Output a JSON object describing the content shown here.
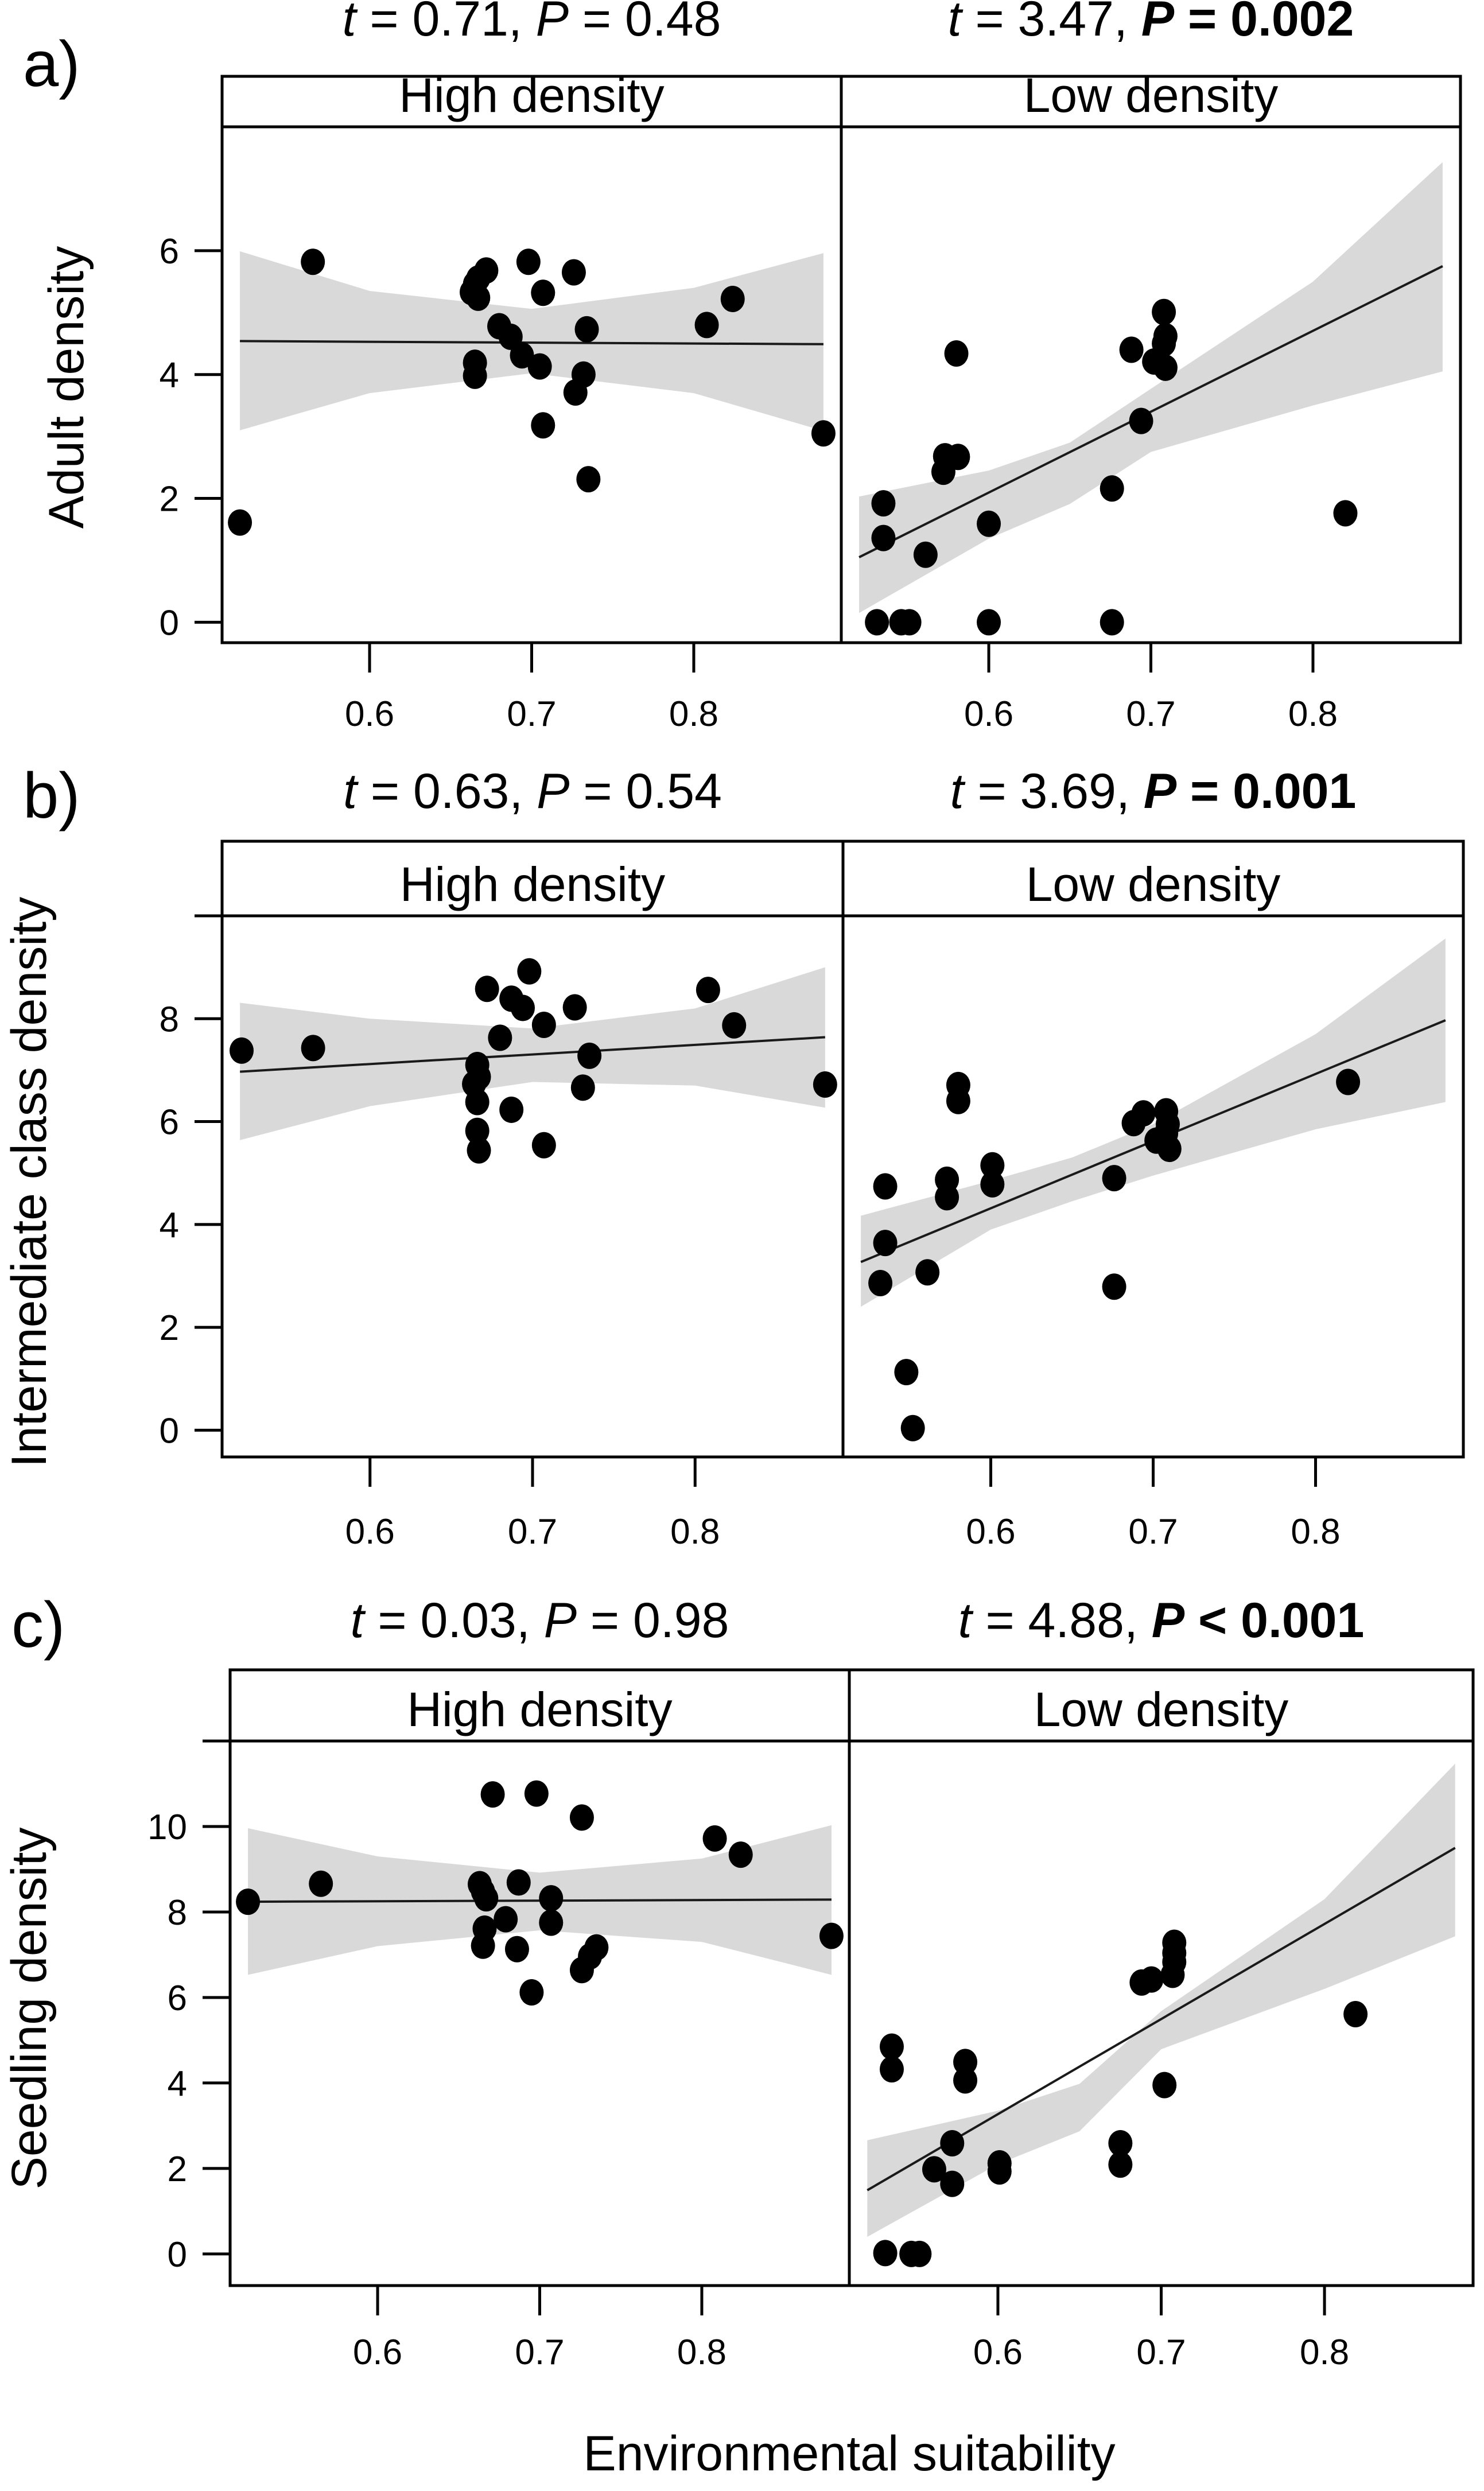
{
  "figure": {
    "xlabel": "Environmental suitability",
    "strip_labels": [
      "High density",
      "Low density"
    ]
  },
  "chart_data": [
    {
      "type": "scatter",
      "panel": "a)",
      "ylabel": "Adult density",
      "xlabel": "Environmental suitability",
      "xlim": [
        0.509,
        0.891
      ],
      "ylim": [
        -0.33,
        8.0
      ],
      "xticks": [
        0.6,
        0.7,
        0.8
      ],
      "xtick_labels": [
        "0.6",
        "0.7",
        "0.8"
      ],
      "yticks": [
        0,
        2,
        4,
        6
      ],
      "ytick_labels": [
        "0",
        "2",
        "4",
        "6"
      ],
      "facets": [
        {
          "strip": "High density",
          "stat": {
            "t_label": "t",
            "t_text": " = 0.71, ",
            "p_label": "P",
            "p_text": " = 0.48",
            "significant": false
          },
          "fit": {
            "x": [
              0.52,
              0.88
            ],
            "y": [
              4.54,
              4.49
            ]
          },
          "ci_band": {
            "x": [
              0.52,
              0.6,
              0.7,
              0.8,
              0.88
            ],
            "upper": [
              5.99,
              5.35,
              5.06,
              5.4,
              5.96
            ],
            "lower": [
              3.1,
              3.7,
              4.02,
              3.7,
              3.09
            ]
          },
          "points": [
            [
              0.52,
              1.61
            ],
            [
              0.565,
              5.82
            ],
            [
              0.672,
              5.68
            ],
            [
              0.667,
              5.55
            ],
            [
              0.665,
              5.46
            ],
            [
              0.663,
              5.33
            ],
            [
              0.667,
              5.24
            ],
            [
              0.698,
              5.82
            ],
            [
              0.726,
              5.65
            ],
            [
              0.707,
              5.32
            ],
            [
              0.824,
              5.22
            ],
            [
              0.808,
              4.8
            ],
            [
              0.68,
              4.78
            ],
            [
              0.687,
              4.61
            ],
            [
              0.734,
              4.73
            ],
            [
              0.665,
              4.19
            ],
            [
              0.665,
              3.98
            ],
            [
              0.694,
              4.31
            ],
            [
              0.705,
              4.13
            ],
            [
              0.732,
              4.0
            ],
            [
              0.727,
              3.71
            ],
            [
              0.707,
              3.18
            ],
            [
              0.735,
              2.31
            ],
            [
              0.88,
              3.05
            ]
          ]
        },
        {
          "strip": "Low density",
          "stat": {
            "t_label": "t",
            "t_text": " = 3.47, ",
            "p_label": "P",
            "p_text": " = 0.002",
            "significant": true
          },
          "fit": {
            "x": [
              0.52,
              0.88
            ],
            "y": [
              1.05,
              5.75
            ]
          },
          "ci_band": {
            "x": [
              0.52,
              0.6,
              0.65,
              0.7,
              0.8,
              0.88
            ],
            "upper": [
              2.03,
              2.45,
              2.9,
              3.77,
              5.5,
              7.43
            ],
            "lower": [
              0.15,
              1.35,
              1.91,
              2.75,
              3.5,
              4.05
            ]
          },
          "points": [
            [
              0.531,
              0
            ],
            [
              0.546,
              0
            ],
            [
              0.551,
              0
            ],
            [
              0.6,
              0
            ],
            [
              0.676,
              0
            ],
            [
              0.535,
              1.36
            ],
            [
              0.535,
              1.92
            ],
            [
              0.561,
              1.09
            ],
            [
              0.6,
              1.59
            ],
            [
              0.572,
              2.43
            ],
            [
              0.573,
              2.68
            ],
            [
              0.581,
              2.67
            ],
            [
              0.58,
              4.34
            ],
            [
              0.676,
              2.16
            ],
            [
              0.694,
              3.25
            ],
            [
              0.688,
              4.4
            ],
            [
              0.708,
              5.01
            ],
            [
              0.709,
              4.62
            ],
            [
              0.708,
              4.5
            ],
            [
              0.702,
              4.21
            ],
            [
              0.709,
              4.11
            ],
            [
              0.82,
              1.76
            ]
          ]
        }
      ]
    },
    {
      "type": "scatter",
      "panel": "b)",
      "ylabel": "Intermediate class density",
      "xlabel": "Environmental suitability",
      "xlim": [
        0.509,
        0.891
      ],
      "ylim": [
        -0.52,
        10.0
      ],
      "xticks": [
        0.6,
        0.7,
        0.8
      ],
      "xtick_labels": [
        "0.6",
        "0.7",
        "0.8"
      ],
      "yticks": [
        0,
        2,
        4,
        6,
        8,
        10
      ],
      "ytick_labels": [
        "0",
        "2",
        "4",
        "6",
        "8",
        ""
      ],
      "facets": [
        {
          "strip": "High density",
          "stat": {
            "t_label": "t",
            "t_text": " = 0.63, ",
            "p_label": "P",
            "p_text": " = 0.54",
            "significant": false
          },
          "fit": {
            "x": [
              0.52,
              0.88
            ],
            "y": [
              6.97,
              7.64
            ]
          },
          "ci_band": {
            "x": [
              0.52,
              0.6,
              0.7,
              0.8,
              0.88
            ],
            "upper": [
              8.31,
              8.0,
              7.81,
              8.2,
              9.0
            ],
            "lower": [
              5.64,
              6.3,
              6.77,
              6.7,
              6.27
            ]
          },
          "points": [
            [
              0.521,
              7.38
            ],
            [
              0.565,
              7.43
            ],
            [
              0.672,
              8.58
            ],
            [
              0.698,
              8.92
            ],
            [
              0.687,
              8.39
            ],
            [
              0.694,
              8.21
            ],
            [
              0.726,
              8.22
            ],
            [
              0.707,
              7.88
            ],
            [
              0.68,
              7.63
            ],
            [
              0.808,
              8.56
            ],
            [
              0.824,
              7.87
            ],
            [
              0.735,
              7.28
            ],
            [
              0.666,
              7.1
            ],
            [
              0.667,
              6.87
            ],
            [
              0.664,
              6.73
            ],
            [
              0.666,
              6.38
            ],
            [
              0.731,
              6.66
            ],
            [
              0.687,
              6.23
            ],
            [
              0.666,
              5.82
            ],
            [
              0.667,
              5.44
            ],
            [
              0.707,
              5.54
            ],
            [
              0.88,
              6.72
            ]
          ]
        },
        {
          "strip": "Low density",
          "stat": {
            "t_label": "t",
            "t_text": " = 3.69, ",
            "p_label": "P",
            "p_text": " = 0.001",
            "significant": true
          },
          "fit": {
            "x": [
              0.52,
              0.88
            ],
            "y": [
              3.27,
              7.97
            ]
          },
          "ci_band": {
            "x": [
              0.52,
              0.6,
              0.65,
              0.7,
              0.8,
              0.88
            ],
            "upper": [
              4.17,
              4.85,
              5.3,
              5.95,
              7.7,
              9.56
            ],
            "lower": [
              2.4,
              3.9,
              4.45,
              4.95,
              5.85,
              6.38
            ]
          },
          "points": [
            [
              0.552,
              0.04
            ],
            [
              0.548,
              1.13
            ],
            [
              0.532,
              2.86
            ],
            [
              0.561,
              3.07
            ],
            [
              0.535,
              3.64
            ],
            [
              0.535,
              4.74
            ],
            [
              0.573,
              4.53
            ],
            [
              0.573,
              4.87
            ],
            [
              0.601,
              4.78
            ],
            [
              0.601,
              5.15
            ],
            [
              0.58,
              6.4
            ],
            [
              0.58,
              6.71
            ],
            [
              0.676,
              2.79
            ],
            [
              0.676,
              4.9
            ],
            [
              0.688,
              5.97
            ],
            [
              0.694,
              6.16
            ],
            [
              0.708,
              6.2
            ],
            [
              0.709,
              5.95
            ],
            [
              0.702,
              5.63
            ],
            [
              0.71,
              5.47
            ],
            [
              0.708,
              5.77
            ],
            [
              0.82,
              6.77
            ]
          ]
        }
      ]
    },
    {
      "type": "scatter",
      "panel": "c)",
      "ylabel": "Seedling density",
      "xlabel": "Environmental suitability",
      "xlim": [
        0.509,
        0.891
      ],
      "ylim": [
        -0.74,
        12.0
      ],
      "xticks": [
        0.6,
        0.7,
        0.8
      ],
      "xtick_labels": [
        "0.6",
        "0.7",
        "0.8"
      ],
      "yticks": [
        0,
        2,
        4,
        6,
        8,
        10,
        12
      ],
      "ytick_labels": [
        "0",
        "2",
        "4",
        "6",
        "8",
        "10",
        ""
      ],
      "facets": [
        {
          "strip": "High density",
          "stat": {
            "t_label": "t",
            "t_text": " = 0.03, ",
            "p_label": "P",
            "p_text": " = 0.98",
            "significant": false
          },
          "fit": {
            "x": [
              0.52,
              0.88
            ],
            "y": [
              8.24,
              8.29
            ]
          },
          "ci_band": {
            "x": [
              0.52,
              0.6,
              0.7,
              0.8,
              0.88
            ],
            "upper": [
              9.96,
              9.3,
              8.92,
              9.25,
              10.03
            ],
            "lower": [
              6.53,
              7.2,
              7.57,
              7.3,
              6.53
            ]
          },
          "points": [
            [
              0.52,
              8.24
            ],
            [
              0.565,
              8.66
            ],
            [
              0.671,
              10.75
            ],
            [
              0.698,
              10.77
            ],
            [
              0.726,
              10.21
            ],
            [
              0.808,
              9.72
            ],
            [
              0.824,
              9.34
            ],
            [
              0.663,
              8.65
            ],
            [
              0.665,
              8.48
            ],
            [
              0.667,
              8.32
            ],
            [
              0.687,
              8.69
            ],
            [
              0.707,
              8.32
            ],
            [
              0.679,
              7.83
            ],
            [
              0.707,
              7.75
            ],
            [
              0.666,
              7.61
            ],
            [
              0.665,
              7.21
            ],
            [
              0.686,
              7.13
            ],
            [
              0.735,
              7.17
            ],
            [
              0.731,
              6.96
            ],
            [
              0.726,
              6.64
            ],
            [
              0.695,
              6.12
            ],
            [
              0.88,
              7.44
            ]
          ]
        },
        {
          "strip": "Low density",
          "stat": {
            "t_label": "t",
            "t_text": " = 4.88, ",
            "p_label": "P",
            "p_text": " < 0.001",
            "significant": true
          },
          "fit": {
            "x": [
              0.52,
              0.88
            ],
            "y": [
              1.49,
              9.5
            ]
          },
          "ci_band": {
            "x": [
              0.52,
              0.6,
              0.65,
              0.7,
              0.8,
              0.88
            ],
            "upper": [
              2.66,
              3.35,
              3.98,
              5.68,
              8.3,
              11.47
            ],
            "lower": [
              0.4,
              2.1,
              2.87,
              4.79,
              6.2,
              7.43
            ]
          },
          "points": [
            [
              0.531,
              0.02
            ],
            [
              0.547,
              0
            ],
            [
              0.552,
              0
            ],
            [
              0.535,
              4.85
            ],
            [
              0.535,
              4.32
            ],
            [
              0.58,
              4.49
            ],
            [
              0.58,
              4.06
            ],
            [
              0.572,
              2.59
            ],
            [
              0.561,
              1.98
            ],
            [
              0.572,
              1.64
            ],
            [
              0.601,
              2.12
            ],
            [
              0.601,
              1.93
            ],
            [
              0.675,
              2.59
            ],
            [
              0.675,
              2.09
            ],
            [
              0.702,
              3.95
            ],
            [
              0.688,
              6.35
            ],
            [
              0.694,
              6.42
            ],
            [
              0.708,
              7.28
            ],
            [
              0.708,
              7.04
            ],
            [
              0.708,
              6.83
            ],
            [
              0.707,
              6.53
            ],
            [
              0.819,
              5.61
            ]
          ]
        }
      ]
    }
  ]
}
